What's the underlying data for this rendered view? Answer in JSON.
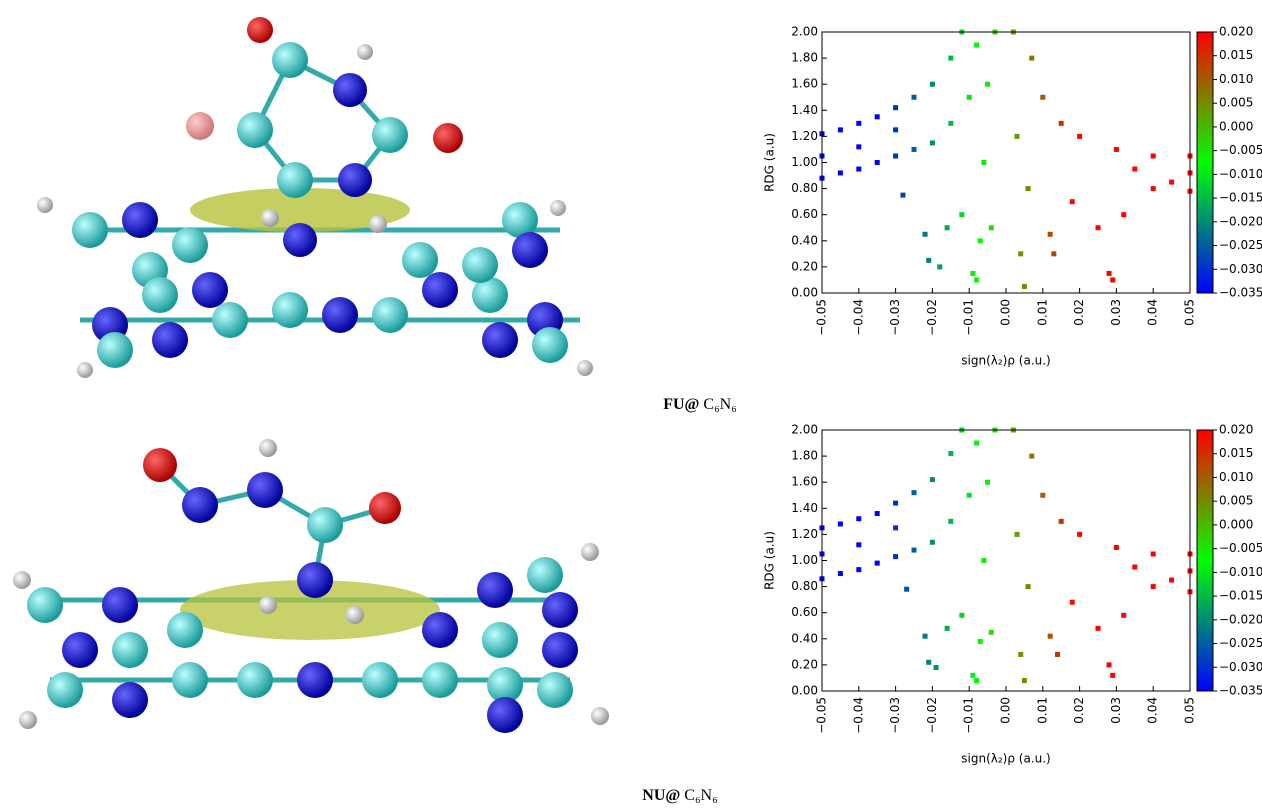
{
  "chart_data": [
    {
      "type": "scatter",
      "ylabel": "RDG (a.u)",
      "xlabel": "sign(λ₂)ρ (a.u.)",
      "caption": {
        "bold": "FU@",
        "text": "C₆N₆"
      },
      "xlim": [
        -0.05,
        0.05
      ],
      "ylim": [
        0,
        2
      ],
      "xticks": [
        {
          "value": -0.05,
          "label": "−0.05"
        },
        {
          "value": -0.04,
          "label": "−0.04"
        },
        {
          "value": -0.03,
          "label": "−0.03"
        },
        {
          "value": -0.02,
          "label": "−0.02"
        },
        {
          "value": -0.01,
          "label": "−0.01"
        },
        {
          "value": 0,
          "label": "0.00"
        },
        0.01,
        0.02,
        0.03,
        0.04,
        0.05
      ],
      "yticks": [
        {
          "value": 0,
          "label": "0.00"
        },
        {
          "value": 0.2,
          "label": "0.20"
        },
        {
          "value": 0.4,
          "label": "0.40"
        },
        {
          "value": 0.6,
          "label": "0.60"
        },
        {
          "value": 0.8,
          "label": "0.80"
        },
        {
          "value": 1,
          "label": "1.00"
        },
        {
          "value": 1.2,
          "label": "1.20"
        },
        {
          "value": 1.4,
          "label": "1.40"
        },
        {
          "value": 1.6,
          "label": "1.60"
        },
        {
          "value": 1.8,
          "label": "1.80"
        },
        {
          "value": 2,
          "label": "2.00"
        }
      ],
      "colorbar": {
        "lim": [
          -0.035,
          0.02
        ],
        "colors": [
          "#0000ff",
          "#00ff00",
          "#ff0000"
        ],
        "ticks": [
          {
            "value": 0.02,
            "label": "0.020"
          },
          {
            "value": 0.015,
            "label": "0.015"
          },
          {
            "value": 0.01,
            "label": "0.010"
          },
          {
            "value": 0.005,
            "label": "0.005"
          },
          {
            "value": 0,
            "label": "0.000"
          },
          {
            "value": -0.005,
            "label": "−0.005"
          },
          {
            "value": -0.01,
            "label": "−0.010"
          },
          {
            "value": -0.015,
            "label": "−0.015"
          },
          {
            "value": -0.02,
            "label": "−0.020"
          },
          {
            "value": -0.025,
            "label": "−0.025"
          },
          {
            "value": -0.03,
            "label": "−0.030"
          },
          {
            "value": -0.035,
            "label": "−0.035"
          }
        ]
      },
      "x": [
        -0.05,
        -0.05,
        -0.05,
        -0.045,
        -0.045,
        -0.04,
        -0.04,
        -0.04,
        -0.035,
        -0.035,
        -0.03,
        -0.03,
        -0.03,
        -0.025,
        -0.025,
        -0.02,
        -0.02,
        -0.015,
        -0.015,
        -0.012,
        -0.01,
        -0.008,
        -0.028,
        -0.022,
        -0.021,
        -0.018,
        -0.016,
        -0.012,
        -0.009,
        -0.008,
        -0.007,
        -0.006,
        -0.005,
        -0.003,
        -0.004,
        0.002,
        0.003,
        0.004,
        0.005,
        0.006,
        0.007,
        0.01,
        0.012,
        0.013,
        0.015,
        0.018,
        0.02,
        0.025,
        0.028,
        0.029,
        0.03,
        0.032,
        0.035,
        0.04,
        0.04,
        0.045,
        0.05,
        0.05,
        0.05
      ],
      "values": [
        0.88,
        1.05,
        1.22,
        0.92,
        1.25,
        0.95,
        1.12,
        1.3,
        1.0,
        1.35,
        1.05,
        1.25,
        1.42,
        1.1,
        1.5,
        1.15,
        1.6,
        1.3,
        1.8,
        2.0,
        1.5,
        1.9,
        0.75,
        0.45,
        0.25,
        0.2,
        0.5,
        0.6,
        0.15,
        0.1,
        0.4,
        1.0,
        1.6,
        2.0,
        0.5,
        2.0,
        1.2,
        0.3,
        0.05,
        0.8,
        1.8,
        1.5,
        0.45,
        0.3,
        1.3,
        0.7,
        1.2,
        0.5,
        0.15,
        0.1,
        1.1,
        0.6,
        0.95,
        1.05,
        0.8,
        0.85,
        0.78,
        1.05,
        0.92
      ]
    },
    {
      "type": "scatter",
      "ylabel": "RDG (a.u)",
      "xlabel": "sign(λ₂)ρ (a.u.)",
      "caption": {
        "bold": "NU@",
        "text": "C₆N₆"
      },
      "xlim": [
        -0.05,
        0.05
      ],
      "ylim": [
        0,
        2
      ],
      "xticks": [
        {
          "value": -0.05,
          "label": "−0.05"
        },
        {
          "value": -0.04,
          "label": "−0.04"
        },
        {
          "value": -0.03,
          "label": "−0.03"
        },
        {
          "value": -0.02,
          "label": "−0.02"
        },
        {
          "value": -0.01,
          "label": "−0.01"
        },
        {
          "value": 0,
          "label": "0.00"
        },
        0.01,
        0.02,
        0.03,
        0.04,
        0.05
      ],
      "yticks": [
        {
          "value": 0,
          "label": "0.00"
        },
        {
          "value": 0.2,
          "label": "0.20"
        },
        {
          "value": 0.4,
          "label": "0.40"
        },
        {
          "value": 0.6,
          "label": "0.60"
        },
        {
          "value": 0.8,
          "label": "0.80"
        },
        {
          "value": 1,
          "label": "1.00"
        },
        {
          "value": 1.2,
          "label": "1.20"
        },
        {
          "value": 1.4,
          "label": "1.40"
        },
        {
          "value": 1.6,
          "label": "1.60"
        },
        {
          "value": 1.8,
          "label": "1.80"
        },
        {
          "value": 2,
          "label": "2.00"
        }
      ],
      "colorbar": {
        "lim": [
          -0.035,
          0.02
        ],
        "colors": [
          "#0000ff",
          "#00ff00",
          "#ff0000"
        ],
        "ticks": [
          {
            "value": 0.02,
            "label": "0.020"
          },
          {
            "value": 0.015,
            "label": "0.015"
          },
          {
            "value": 0.01,
            "label": "0.010"
          },
          {
            "value": 0.005,
            "label": "0.005"
          },
          {
            "value": 0,
            "label": "0.000"
          },
          {
            "value": -0.005,
            "label": "−0.005"
          },
          {
            "value": -0.01,
            "label": "−0.010"
          },
          {
            "value": -0.015,
            "label": "−0.015"
          },
          {
            "value": -0.02,
            "label": "−0.020"
          },
          {
            "value": -0.025,
            "label": "−0.025"
          },
          {
            "value": -0.03,
            "label": "−0.030"
          },
          {
            "value": -0.035,
            "label": "−0.035"
          }
        ]
      },
      "x": [
        -0.05,
        -0.05,
        -0.05,
        -0.045,
        -0.045,
        -0.04,
        -0.04,
        -0.04,
        -0.035,
        -0.035,
        -0.03,
        -0.03,
        -0.03,
        -0.025,
        -0.025,
        -0.02,
        -0.02,
        -0.015,
        -0.015,
        -0.012,
        -0.01,
        -0.008,
        -0.027,
        -0.022,
        -0.021,
        -0.019,
        -0.016,
        -0.012,
        -0.009,
        -0.008,
        -0.007,
        -0.006,
        -0.005,
        -0.003,
        -0.004,
        0.002,
        0.003,
        0.004,
        0.005,
        0.006,
        0.007,
        0.01,
        0.012,
        0.014,
        0.015,
        0.018,
        0.02,
        0.025,
        0.028,
        0.029,
        0.03,
        0.032,
        0.035,
        0.04,
        0.04,
        0.045,
        0.05,
        0.05,
        0.05
      ],
      "values": [
        0.86,
        1.05,
        1.25,
        0.9,
        1.28,
        0.93,
        1.12,
        1.32,
        0.98,
        1.36,
        1.03,
        1.25,
        1.44,
        1.08,
        1.52,
        1.14,
        1.62,
        1.3,
        1.82,
        2.0,
        1.5,
        1.9,
        0.78,
        0.42,
        0.22,
        0.18,
        0.48,
        0.58,
        0.12,
        0.08,
        0.38,
        1.0,
        1.6,
        2.0,
        0.45,
        2.0,
        1.2,
        0.28,
        0.08,
        0.8,
        1.8,
        1.5,
        0.42,
        0.28,
        1.3,
        0.68,
        1.2,
        0.48,
        0.2,
        0.12,
        1.1,
        0.58,
        0.95,
        1.05,
        0.8,
        0.85,
        0.76,
        1.05,
        0.92
      ]
    }
  ]
}
